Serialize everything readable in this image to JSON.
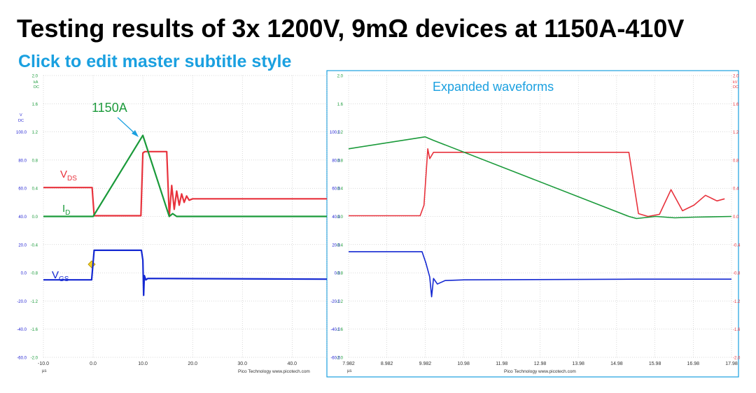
{
  "slide": {
    "title": "Testing results of 3x 1200V, 9mΩ devices at 1150A-410V",
    "subtitle": "Click to edit master subtitle style"
  },
  "colors": {
    "vds": "#e8323c",
    "id": "#1a9a3a",
    "vgs": "#1428d2",
    "label_blue": "#1aa0e0",
    "grid": "#b4b4b4",
    "axis_text": "#1e1ed2"
  },
  "chart_data": [
    {
      "type": "line",
      "annotation": "1150A",
      "footer": "Pico Technology  www.picotech.com",
      "x_unit": "µs",
      "xlim": [
        -10,
        47
      ],
      "x_ticks": [
        "-10.0",
        "0.0",
        "10.0",
        "20.0",
        "30.0",
        "40.0"
      ],
      "y_left_unit": "V",
      "y_left_unit2": "DC",
      "y_left_ticks": [
        "100.0",
        "80.0",
        "60.0",
        "40.0",
        "20.0",
        "0.0",
        "-20.0",
        "-40.0",
        "-60.0"
      ],
      "y_mid_unit": "kA",
      "y_mid_unit2": "DC",
      "y_mid_ticks": [
        "2.0",
        "1.6",
        "1.2",
        "0.8",
        "0.4",
        "0.0",
        "-0.4",
        "-0.8",
        "-1.2",
        "-1.6",
        "-2.0"
      ],
      "series": [
        {
          "name": "VDS",
          "label_main": "V",
          "label_sub": "DS",
          "color": "#e8323c",
          "x": [
            -10,
            -0.2,
            0.2,
            9.6,
            10.0,
            10.4,
            14.8,
            15.3,
            15.8,
            16.3,
            16.8,
            17.3,
            17.8,
            18.3,
            18.8,
            19.3,
            20,
            47
          ],
          "y": [
            60.5,
            60.5,
            40.5,
            40.5,
            85,
            86,
            86,
            40,
            62,
            45,
            58,
            48,
            56,
            50,
            54.5,
            51.5,
            52.5,
            52.5
          ]
        },
        {
          "name": "ID",
          "label_main": "I",
          "label_sub": "D",
          "color": "#1a9a3a",
          "x": [
            -10,
            0,
            10.0,
            15.3,
            16,
            16.8,
            47
          ],
          "y": [
            0.0,
            0.0,
            1.15,
            0.0,
            0.04,
            0.0,
            0.0
          ]
        },
        {
          "name": "VGS",
          "label_main": "V",
          "label_sub": "GS",
          "color": "#1428d2",
          "x": [
            -10,
            -0.3,
            0.2,
            9.7,
            10.0,
            10.15,
            10.3,
            10.6,
            11,
            47
          ],
          "y": [
            -5,
            -5,
            16,
            16,
            9,
            -16,
            -2,
            -5,
            -4,
            -4.5
          ]
        }
      ]
    },
    {
      "type": "line",
      "title": "Expanded waveforms",
      "footer": "Pico Technology  www.picotech.com",
      "x_unit": "µs",
      "xlim": [
        7.982,
        17.98
      ],
      "x_ticks": [
        "7.982",
        "8.982",
        "9.982",
        "10.98",
        "11.98",
        "12.98",
        "13.98",
        "14.98",
        "15.98",
        "16.98",
        "17.98"
      ],
      "y_left_ticks": [
        "100.0",
        "80.0",
        "60.0",
        "40.0",
        "20.0",
        "0.0",
        "-20.0",
        "-40.0",
        "-60.0"
      ],
      "y_mid_ticks": [
        "2.0",
        "1.6",
        "1.2",
        "0.8",
        "0.4",
        "0.0",
        "-0.4",
        "-0.8",
        "-1.2",
        "-1.6",
        "-2.0"
      ],
      "y_right_unit": "kV",
      "y_right_unit2": "DC",
      "y_right_ticks": [
        "2.0",
        "1.6",
        "1.2",
        "0.8",
        "0.4",
        "0.0",
        "-0.4",
        "-0.8",
        "-1.2",
        "-1.6",
        "-2.0"
      ],
      "series": [
        {
          "name": "VDS",
          "color": "#e8323c",
          "x": [
            7.982,
            9.85,
            9.95,
            10.05,
            10.1,
            10.2,
            15.3,
            15.55,
            15.8,
            16.1,
            16.4,
            16.7,
            17.0,
            17.3,
            17.6,
            17.8
          ],
          "y": [
            40.5,
            40.5,
            48,
            88,
            81,
            85.5,
            85.5,
            42,
            40,
            41.5,
            59,
            44,
            48,
            55,
            51,
            52.5
          ]
        },
        {
          "name": "ID",
          "color": "#1a9a3a",
          "x": [
            7.982,
            9.982,
            10.2,
            15.3,
            15.5,
            16.0,
            16.5,
            17.0,
            17.98
          ],
          "y": [
            0.96,
            1.13,
            1.08,
            0.0,
            -0.03,
            0.0,
            -0.02,
            -0.01,
            0.0
          ]
        },
        {
          "name": "VGS",
          "color": "#1428d2",
          "x": [
            7.982,
            9.9,
            10.0,
            10.1,
            10.15,
            10.2,
            10.3,
            10.5,
            11,
            15.5,
            17.98
          ],
          "y": [
            15,
            15,
            7,
            -3,
            -17,
            -4,
            -8,
            -5.5,
            -5,
            -4.5,
            -4.5
          ]
        }
      ]
    }
  ]
}
